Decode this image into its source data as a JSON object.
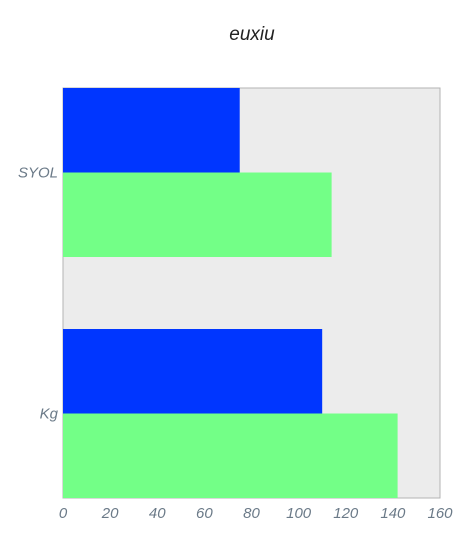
{
  "chart_data": {
    "type": "bar",
    "orientation": "horizontal",
    "title": "euxiu",
    "categories": [
      "SYOL",
      "Kg"
    ],
    "series": [
      {
        "color": "#0036ff",
        "values": [
          75,
          110
        ]
      },
      {
        "color": "#73ff87",
        "values": [
          114,
          142
        ]
      }
    ],
    "xlim": [
      0,
      160
    ],
    "xticks": [
      0,
      20,
      40,
      60,
      80,
      100,
      120,
      140,
      160
    ],
    "grid": false,
    "plot_background": "#ececec",
    "plot_border": "#b3b3b3",
    "xlabel": "",
    "ylabel": ""
  }
}
